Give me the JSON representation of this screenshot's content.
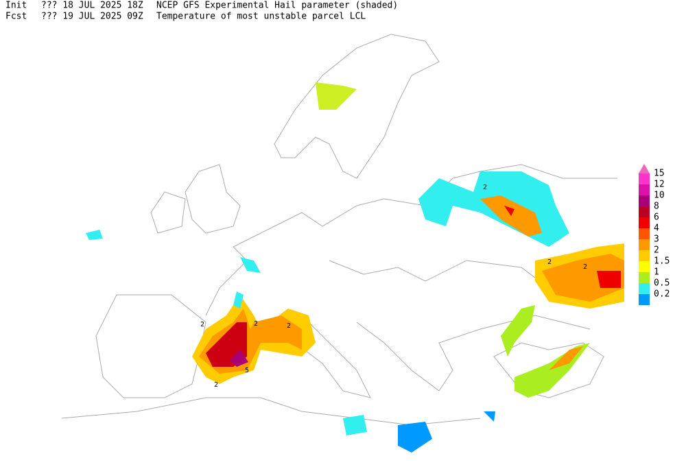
{
  "header": {
    "init_label": "Init",
    "init_time": "??? 18 JUL 2025 18Z",
    "title": "NCEP GFS Experimental Hail parameter (shaded)",
    "fcst_label": "Fcst",
    "fcst_time": "??? 19 JUL 2025 09Z",
    "subtitle": "Temperature of most unstable parcel LCL"
  },
  "legend": {
    "items": [
      {
        "label": "15",
        "color": "#ff33cc"
      },
      {
        "label": "12",
        "color": "#dd11aa"
      },
      {
        "label": "10",
        "color": "#aa0077"
      },
      {
        "label": "8",
        "color": "#bb0022"
      },
      {
        "label": "6",
        "color": "#ee0000"
      },
      {
        "label": "4",
        "color": "#ff5500"
      },
      {
        "label": "3",
        "color": "#ff9900"
      },
      {
        "label": "2",
        "color": "#ffcc00"
      },
      {
        "label": "1.5",
        "color": "#ffff00"
      },
      {
        "label": "1",
        "color": "#aaee22"
      },
      {
        "label": "0.5",
        "color": "#33eeee"
      },
      {
        "label": "0.2",
        "color": "#0099ff"
      }
    ],
    "top_color": "#ee66bb"
  },
  "contour_labels": [
    "2",
    "2",
    "2",
    "5",
    "2",
    "2",
    "2",
    "2"
  ]
}
